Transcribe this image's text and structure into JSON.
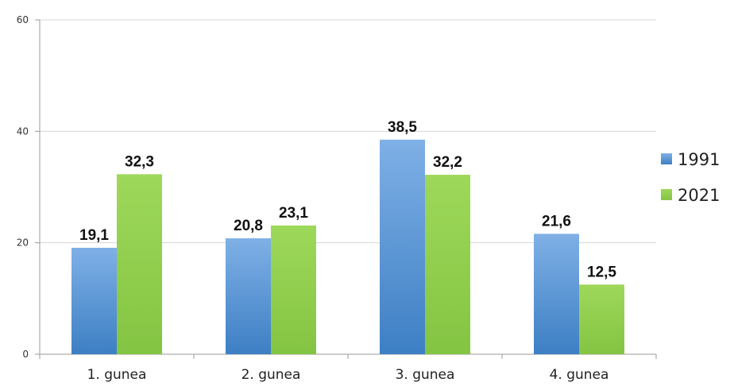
{
  "chart_data": {
    "type": "bar",
    "categories": [
      "1. gunea",
      "2. gunea",
      "3. gunea",
      "4. gunea"
    ],
    "series": [
      {
        "name": "1991",
        "values": [
          19.1,
          20.8,
          38.5,
          21.6
        ],
        "labels": [
          "19,1",
          "20,8",
          "38,5",
          "21,6"
        ],
        "color": "#4a8fd0"
      },
      {
        "name": "2021",
        "values": [
          32.3,
          23.1,
          32.2,
          12.5
        ],
        "labels": [
          "32,3",
          "23,1",
          "32,2",
          "12,5"
        ],
        "color": "#92d050"
      }
    ],
    "yticks": [
      0,
      20,
      40,
      60
    ],
    "ytick_labels": [
      "0",
      "20",
      "40",
      "60"
    ],
    "ylim": [
      0,
      60
    ],
    "title": "",
    "xlabel": "",
    "ylabel": "",
    "grid": true,
    "legend_position": "right"
  }
}
